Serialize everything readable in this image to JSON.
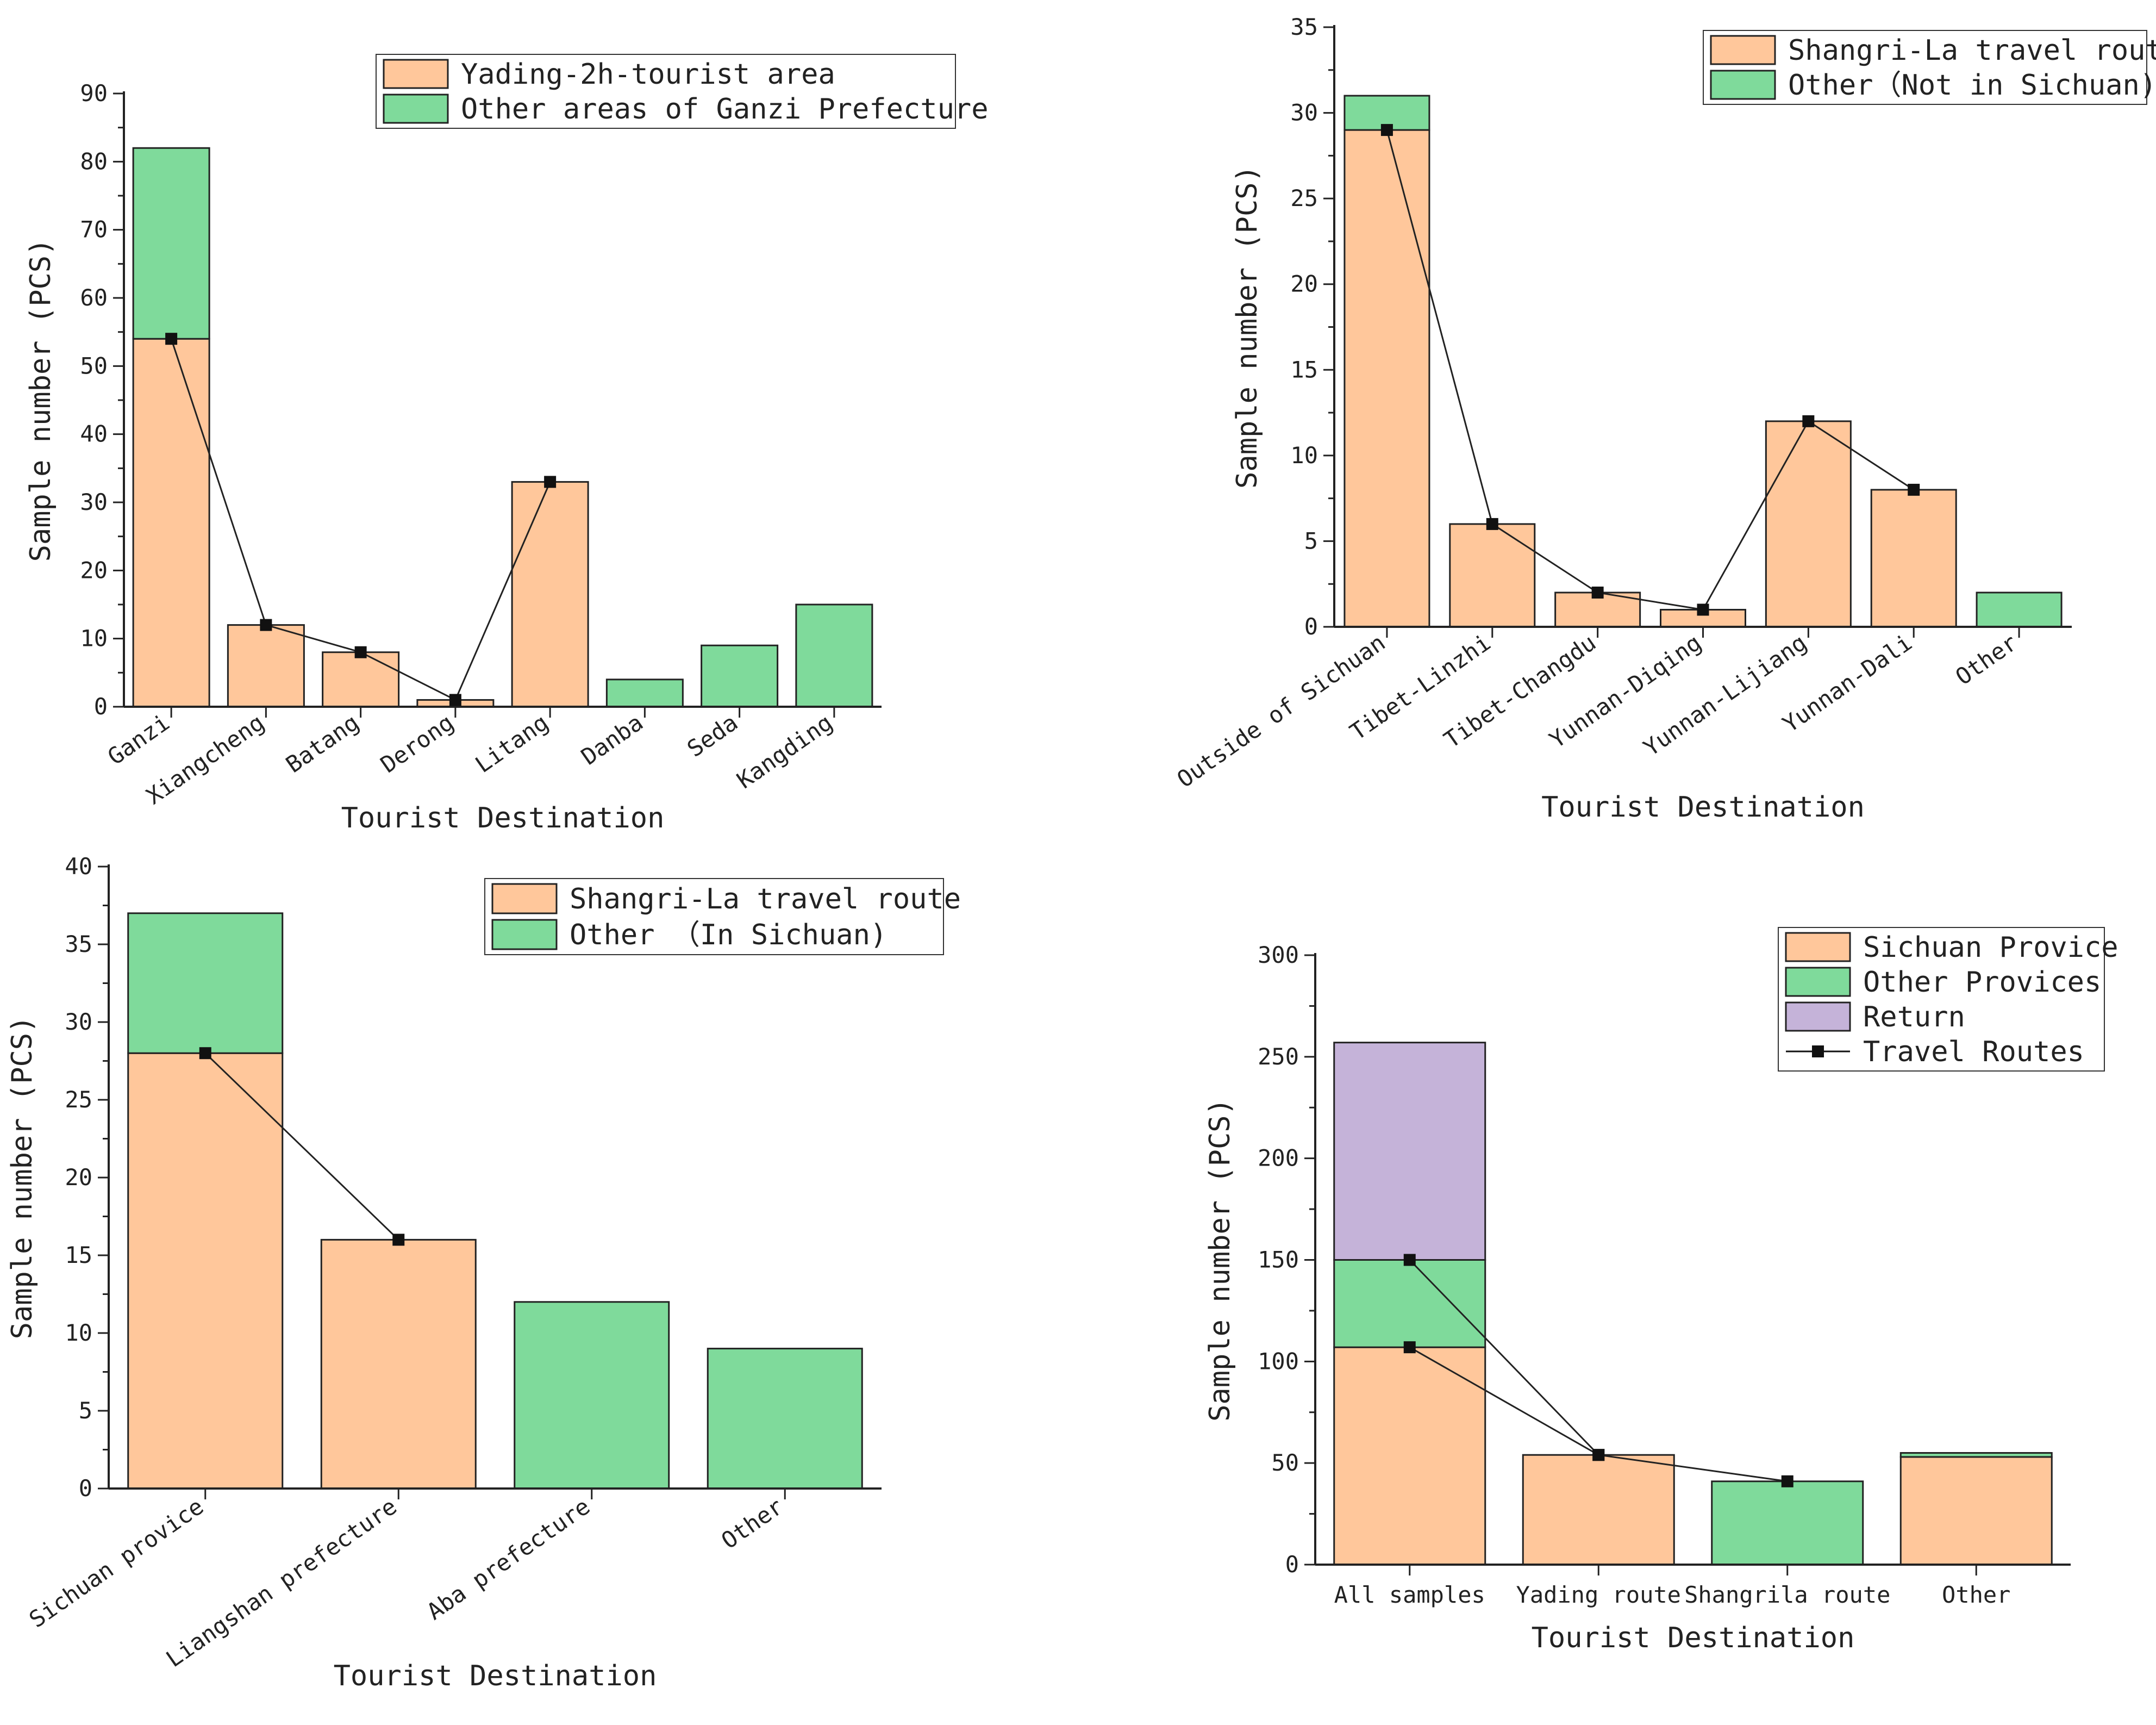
{
  "colors": {
    "orange": "#FFC79B",
    "green": "#7FDA9B",
    "purple": "#C5B3D9",
    "edge": "#222222",
    "line": "#222222"
  },
  "chart_data": [
    {
      "id": "a",
      "type": "bar",
      "stacked": true,
      "title": "",
      "xlabel": "Tourist Destination",
      "ylabel": "Sample number (PCS)",
      "ylim": [
        0,
        90
      ],
      "yticks": [
        0,
        10,
        20,
        30,
        40,
        50,
        60,
        70,
        80,
        90
      ],
      "legend_position": "top-center",
      "categories": [
        "Ganzi",
        "Xiangcheng",
        "Batang",
        "Derong",
        "Litang",
        "Danba",
        "Seda",
        "Kangding"
      ],
      "series": [
        {
          "name": "Yading-2h-tourist area",
          "color": "orange",
          "values": [
            54,
            12,
            8,
            1,
            33,
            0,
            0,
            0
          ]
        },
        {
          "name": "Other areas of Ganzi Prefecture",
          "color": "green",
          "values": [
            28,
            0,
            0,
            0,
            0,
            4,
            9,
            15
          ]
        }
      ],
      "lines": [
        {
          "name": "",
          "x": [
            "Ganzi",
            "Xiangcheng",
            "Batang",
            "Derong",
            "Litang"
          ],
          "values": [
            54,
            12,
            8,
            1,
            33
          ]
        }
      ]
    },
    {
      "id": "b",
      "type": "bar",
      "stacked": true,
      "title": "",
      "xlabel": "Tourist Destination",
      "ylabel": "Sample number (PCS)",
      "ylim": [
        0,
        35
      ],
      "yticks": [
        0,
        5,
        10,
        15,
        20,
        25,
        30,
        35
      ],
      "legend_position": "top-right",
      "categories": [
        "Outside of Sichuan",
        "Tibet-Linzhi",
        "Tibet-Changdu",
        "Yunnan-Diqing",
        "Yunnan-Lijiang",
        "Yunnan-Dali",
        "Other"
      ],
      "series": [
        {
          "name": "Shangri-La travel route",
          "color": "orange",
          "values": [
            29,
            6,
            2,
            1,
            12,
            8,
            0
          ]
        },
        {
          "name": "Other（Not in Sichuan)",
          "color": "green",
          "values": [
            2,
            0,
            0,
            0,
            0,
            0,
            2
          ]
        }
      ],
      "lines": [
        {
          "name": "",
          "x": [
            "Outside of Sichuan",
            "Tibet-Linzhi",
            "Tibet-Changdu",
            "Yunnan-Diqing",
            "Yunnan-Lijiang",
            "Yunnan-Dali"
          ],
          "values": [
            29,
            6,
            2,
            1,
            12,
            8
          ]
        }
      ]
    },
    {
      "id": "c",
      "type": "bar",
      "stacked": true,
      "title": "",
      "xlabel": "Tourist Destination",
      "ylabel": "Sample number (PCS)",
      "ylim": [
        0,
        40
      ],
      "yticks": [
        0,
        5,
        10,
        15,
        20,
        25,
        30,
        35,
        40
      ],
      "legend_position": "top-center",
      "categories": [
        "Sichuan provice",
        "Liangshan prefecture",
        "Aba prefecture",
        "Other"
      ],
      "series": [
        {
          "name": "Shangri-La travel route",
          "color": "orange",
          "values": [
            28,
            16,
            0,
            0
          ]
        },
        {
          "name": "Other （In Sichuan)",
          "color": "green",
          "values": [
            9,
            0,
            12,
            9
          ]
        }
      ],
      "lines": [
        {
          "name": "",
          "x": [
            "Sichuan provice",
            "Liangshan prefecture"
          ],
          "values": [
            28,
            16
          ]
        }
      ]
    },
    {
      "id": "d",
      "type": "bar",
      "stacked": true,
      "title": "",
      "xlabel": "Tourist Destination",
      "ylabel": "Sample number (PCS)",
      "ylim": [
        0,
        300
      ],
      "yticks": [
        0,
        50,
        100,
        150,
        200,
        250,
        300
      ],
      "legend_position": "top-right",
      "categories": [
        "All samples",
        "Yading route",
        "Shangrila route",
        "Other"
      ],
      "series": [
        {
          "name": "Sichuan Provice",
          "color": "orange",
          "values": [
            107,
            54,
            0,
            53
          ]
        },
        {
          "name": "Other Provices",
          "color": "green",
          "values": [
            43,
            0,
            41,
            2
          ]
        },
        {
          "name": "Return",
          "color": "purple",
          "values": [
            107,
            0,
            0,
            0
          ]
        }
      ],
      "lines": [
        {
          "name": "Travel Routes",
          "x": [
            "All samples",
            "Yading route",
            "Shangrila route"
          ],
          "values": [
            107,
            54,
            41
          ]
        },
        {
          "name": "",
          "x": [
            "All samples",
            "Yading route"
          ],
          "values": [
            150,
            54
          ]
        }
      ]
    }
  ]
}
